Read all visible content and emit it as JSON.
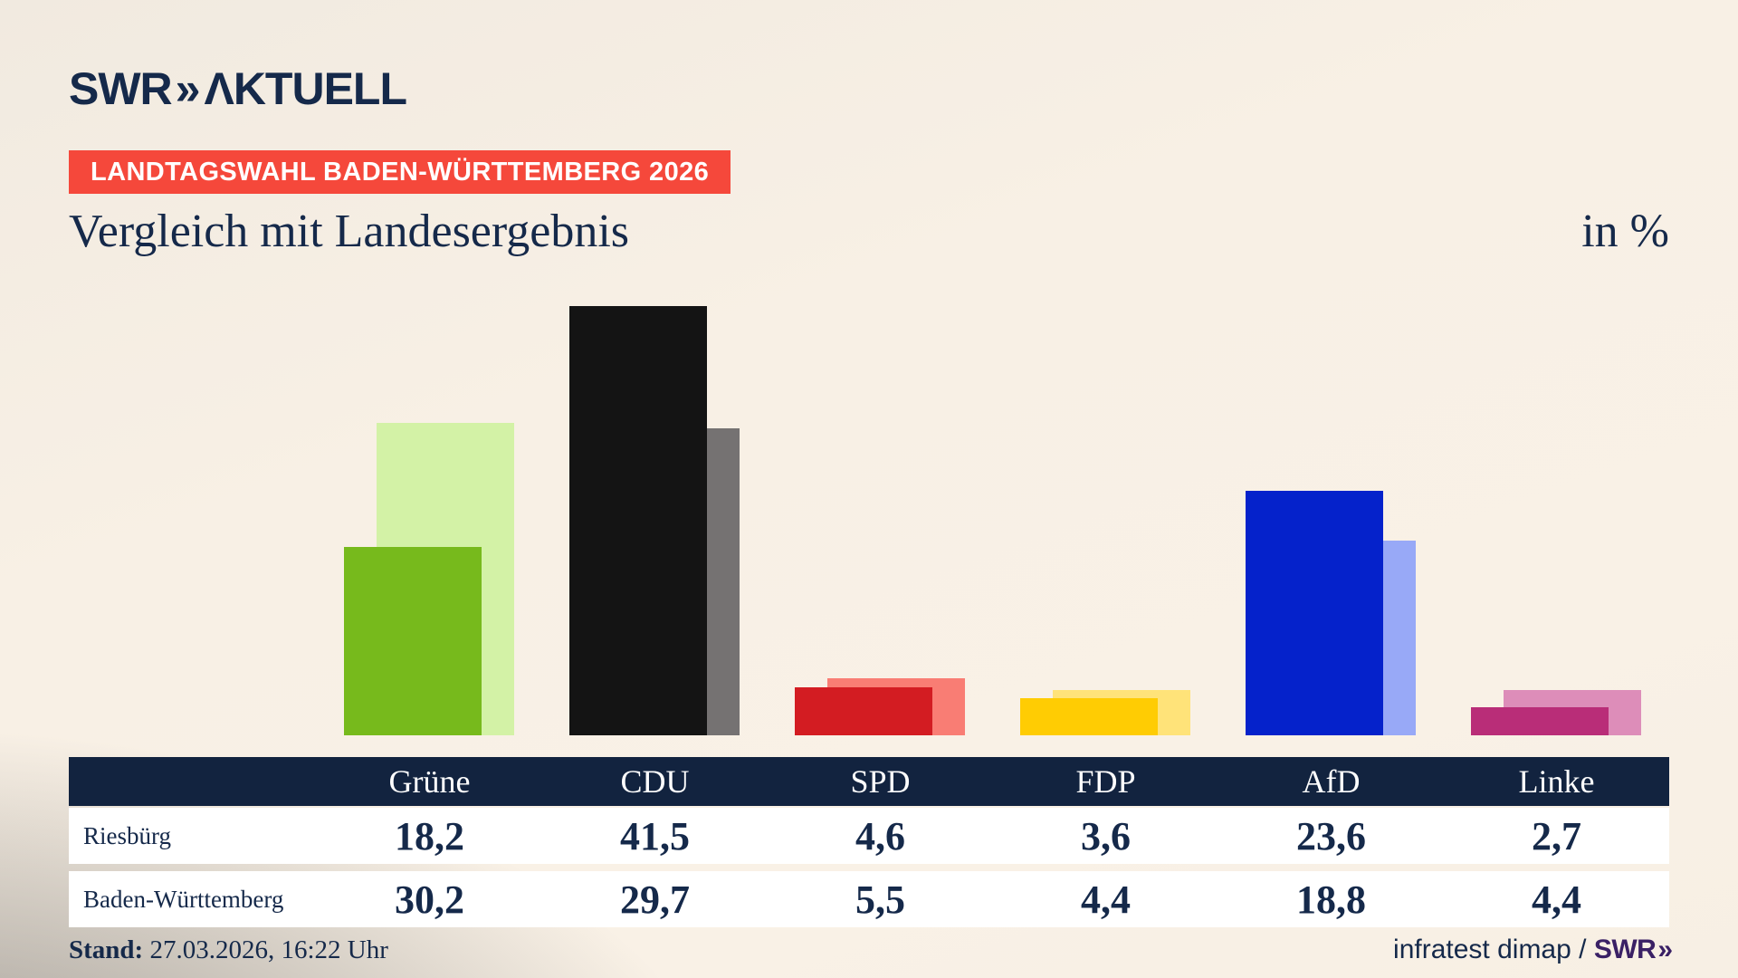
{
  "brand": {
    "logo_swr": "SWR",
    "logo_chevrons": "»",
    "logo_suffix": "ΛKTUELL"
  },
  "badge": {
    "label": "LANDTAGSWAHL BADEN-WÜRTTEMBERG 2026"
  },
  "title": "Vergleich mit Landesergebnis",
  "unit_label": "in %",
  "footer": {
    "stand_label": "Stand:",
    "stand_value": " 27.03.2026, 16:22 Uhr",
    "source_prefix": "infratest dimap / ",
    "source_brand_swr": "SWR",
    "source_brand_chevrons": "»"
  },
  "colors": {
    "navy-text": "#15294a",
    "table-header-navy": "#12233f",
    "badge-red": "#f5483b",
    "badge-text": "#ffffff",
    "row-white": "#ffffff",
    "source-brand-purple": "#3a2065"
  },
  "chart_data": {
    "type": "bar",
    "title": "Vergleich mit Landesergebnis",
    "subtitle": "Landtagswahl Baden-Württemberg 2026",
    "unit": "%",
    "categories": [
      "Grüne",
      "CDU",
      "SPD",
      "FDP",
      "AfD",
      "Linke"
    ],
    "series": [
      {
        "name": "Riesbürg",
        "values": [
          18.2,
          41.5,
          4.6,
          3.6,
          23.6,
          2.7
        ],
        "display": [
          "18,2",
          "41,5",
          "4,6",
          "3,6",
          "23,6",
          "2,7"
        ],
        "colors": [
          "#77ba1c",
          "#141414",
          "#d31c22",
          "#ffcc03",
          "#0522cb",
          "#b92d78"
        ]
      },
      {
        "name": "Baden-Württemberg",
        "values": [
          30.2,
          29.7,
          5.5,
          4.4,
          18.8,
          4.4
        ],
        "display": [
          "30,2",
          "29,7",
          "5,5",
          "4,4",
          "18,8",
          "4,4"
        ],
        "colors": [
          "#d3f2a6",
          "#757272",
          "#f97d74",
          "#ffe379",
          "#98a9f7",
          "#dd8db9"
        ]
      }
    ],
    "ylim": [
      0,
      44.8
    ],
    "grid": false,
    "legend_position": "table-below-chart"
  }
}
